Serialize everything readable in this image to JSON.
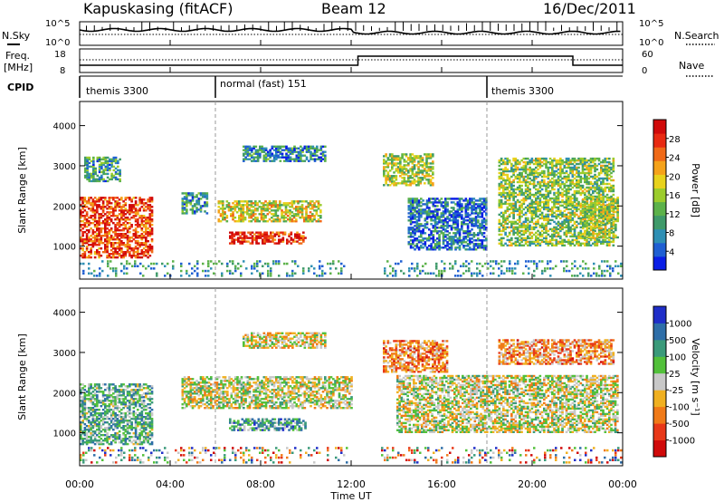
{
  "header": {
    "station": "Kapuskasing (fitACF)",
    "beam": "Beam 12",
    "date": "16/Dec/2011"
  },
  "panels": {
    "nsky": {
      "label": "N.Sky",
      "right_label": "N.Search",
      "tick_top": "10^5",
      "tick_bottom": "10^0",
      "right_tick_top": "10^5",
      "right_tick_bottom": "10^0"
    },
    "freq": {
      "label_line1": "Freq.",
      "label_line2": "[MHz]",
      "right_label": "Nave",
      "ticks_left": [
        "18",
        "8"
      ],
      "ticks_right": [
        "60",
        "0"
      ]
    },
    "cpid": {
      "label": "CPID",
      "segments": [
        {
          "text": "themis 3300",
          "start_hour": 0.0
        },
        {
          "text": "normal (fast) 151",
          "start_hour": 6.0
        },
        {
          "text": "themis 3300",
          "start_hour": 18.0
        }
      ]
    }
  },
  "chart_data": [
    {
      "type": "heatmap",
      "title": "Power",
      "ylabel": "Slant Range [km]",
      "ylim": [
        180,
        4600
      ],
      "y_ticks": [
        1000,
        2000,
        3000,
        4000
      ],
      "xlim": [
        0,
        24
      ],
      "colorbar": {
        "label": "Power [dB]",
        "ticks": [
          "4",
          "8",
          "12",
          "16",
          "20",
          "24",
          "28"
        ],
        "colors": [
          "#0a1ee6",
          "#1f5fd2",
          "#2e8fb4",
          "#3f9a6a",
          "#5cb24a",
          "#9ccc2c",
          "#e8d21c",
          "#f5a21a",
          "#f06a18",
          "#e82a12",
          "#d00a0a"
        ]
      },
      "regions": [
        {
          "t0": 0.0,
          "t1": 3.2,
          "r0": 700,
          "r1": 2200,
          "level": 0.85
        },
        {
          "t0": 0.2,
          "t1": 1.8,
          "r0": 2600,
          "r1": 3200,
          "level": 0.3
        },
        {
          "t0": 4.5,
          "t1": 5.6,
          "r0": 1800,
          "r1": 2300,
          "level": 0.25
        },
        {
          "t0": 6.1,
          "t1": 10.6,
          "r0": 1600,
          "r1": 2100,
          "level": 0.55
        },
        {
          "t0": 6.6,
          "t1": 10.0,
          "r0": 1050,
          "r1": 1350,
          "level": 0.9
        },
        {
          "t0": 7.2,
          "t1": 10.8,
          "r0": 3100,
          "r1": 3500,
          "level": 0.25
        },
        {
          "t0": 13.4,
          "t1": 15.6,
          "r0": 2500,
          "r1": 3300,
          "level": 0.5
        },
        {
          "t0": 14.5,
          "t1": 18.0,
          "r0": 900,
          "r1": 2200,
          "level": 0.2
        },
        {
          "t0": 18.5,
          "t1": 23.6,
          "r0": 1000,
          "r1": 3200,
          "level": 0.45
        },
        {
          "t0": 22.2,
          "t1": 23.8,
          "r0": 1200,
          "r1": 2200,
          "level": 0.5
        }
      ]
    },
    {
      "type": "heatmap",
      "title": "Velocity",
      "ylabel": "Slant Range [km]",
      "ylim": [
        180,
        4600
      ],
      "y_ticks": [
        1000,
        2000,
        3000,
        4000
      ],
      "xlabel": "Time UT",
      "x_ticks": [
        "00:00",
        "04:00",
        "08:00",
        "12:00",
        "16:00",
        "20:00",
        "00:00"
      ],
      "xlim": [
        0,
        24
      ],
      "colorbar": {
        "label": "Velocity [m s⁻¹]",
        "ticks": [
          "1000",
          "500",
          "100",
          "25",
          "-25",
          "-100",
          "-500",
          "-1000"
        ],
        "colors": [
          "#1f2ec8",
          "#2e6ea8",
          "#3a9a7a",
          "#52c03a",
          "#c8c8c8",
          "#f0b020",
          "#f07a18",
          "#e83818",
          "#d00a0a"
        ]
      },
      "regions": [
        {
          "t0": 0.0,
          "t1": 3.2,
          "r0": 700,
          "r1": 2200,
          "level": 0.35
        },
        {
          "t0": 4.5,
          "t1": 12.0,
          "r0": 1600,
          "r1": 2400,
          "level": 0.5
        },
        {
          "t0": 6.6,
          "t1": 10.0,
          "r0": 1050,
          "r1": 1350,
          "level": 0.3
        },
        {
          "t0": 7.2,
          "t1": 10.8,
          "r0": 3100,
          "r1": 3500,
          "level": 0.55
        },
        {
          "t0": 13.4,
          "t1": 16.2,
          "r0": 2500,
          "r1": 3300,
          "level": 0.7
        },
        {
          "t0": 14.0,
          "t1": 23.8,
          "r0": 1000,
          "r1": 2400,
          "level": 0.5
        },
        {
          "t0": 18.5,
          "t1": 23.6,
          "r0": 2700,
          "r1": 3300,
          "level": 0.68
        }
      ]
    }
  ]
}
